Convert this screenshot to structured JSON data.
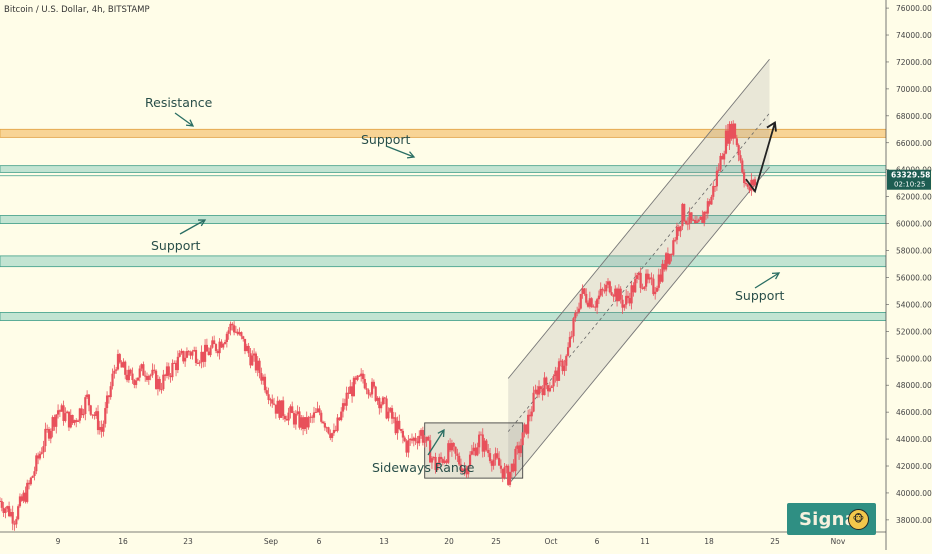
{
  "title": "Bitcoin / U.S. Dollar, 4h, BITSTAMP",
  "price_badge": {
    "price": "63329.58",
    "timer": "02:10:25"
  },
  "watermark": {
    "text": "Signal",
    "icon": "monkey-face-icon"
  },
  "annotations": {
    "resistance": "Resistance",
    "support_1": "Support",
    "support_2": "Support",
    "support_3": "Support",
    "sideways": "Sideways Range"
  },
  "colors": {
    "background": "#fffde8",
    "candle_up": "#e8505b",
    "candle_down": "#e8505b",
    "resistance_zone": "#f6c57a",
    "support_zone": "#8fcfc0",
    "channel": "#c8c8c8",
    "badge": "#1d5d52"
  },
  "chart_data": {
    "type": "candlestick",
    "title": "Bitcoin / U.S. Dollar, 4h, BITSTAMP",
    "y_axis": {
      "ticks": [
        38000,
        40000,
        42000,
        44000,
        46000,
        48000,
        50000,
        52000,
        54000,
        56000,
        58000,
        60000,
        62000,
        64000,
        66000,
        68000,
        70000,
        72000,
        74000,
        76000
      ],
      "ylim": [
        37100,
        76600
      ],
      "position": "right"
    },
    "x_axis": {
      "ticks": [
        "9",
        "16",
        "23",
        "Sep",
        "6",
        "13",
        "20",
        "25",
        "Oct",
        "6",
        "11",
        "18",
        "25",
        "Nov"
      ]
    },
    "price_path": [
      [
        0,
        39400
      ],
      [
        4,
        38200
      ],
      [
        8,
        40500
      ],
      [
        12,
        43800
      ],
      [
        16,
        46200
      ],
      [
        20,
        45200
      ],
      [
        24,
        47000
      ],
      [
        28,
        44600
      ],
      [
        32,
        49800
      ],
      [
        36,
        48400
      ],
      [
        40,
        49200
      ],
      [
        44,
        48000
      ],
      [
        48,
        49500
      ],
      [
        52,
        50500
      ],
      [
        56,
        50200
      ],
      [
        60,
        51000
      ],
      [
        64,
        52500
      ],
      [
        68,
        50600
      ],
      [
        72,
        48800
      ],
      [
        76,
        46400
      ],
      [
        80,
        45800
      ],
      [
        84,
        45000
      ],
      [
        88,
        46000
      ],
      [
        92,
        44200
      ],
      [
        96,
        47500
      ],
      [
        100,
        48500
      ],
      [
        104,
        47200
      ],
      [
        108,
        45500
      ],
      [
        112,
        43500
      ],
      [
        116,
        44500
      ],
      [
        120,
        42000
      ],
      [
        124,
        43200
      ],
      [
        128,
        41800
      ],
      [
        132,
        44000
      ],
      [
        136,
        42500
      ],
      [
        140,
        41200
      ],
      [
        144,
        44000
      ],
      [
        148,
        47800
      ],
      [
        152,
        48200
      ],
      [
        156,
        50000
      ],
      [
        160,
        54800
      ],
      [
        164,
        54200
      ],
      [
        168,
        55500
      ],
      [
        172,
        54000
      ],
      [
        176,
        56000
      ],
      [
        180,
        55200
      ],
      [
        184,
        57500
      ],
      [
        188,
        60800
      ],
      [
        192,
        59500
      ],
      [
        196,
        62000
      ],
      [
        200,
        66400
      ],
      [
        202,
        67200
      ],
      [
        204,
        64800
      ],
      [
        206,
        62300
      ],
      [
        208,
        63300
      ]
    ],
    "zones": [
      {
        "name": "Resistance",
        "from": 66400,
        "to": 67000,
        "color": "#f6c57a"
      },
      {
        "name": "Support",
        "from": 63800,
        "to": 64300,
        "color": "#8fcfc0"
      },
      {
        "name": "Support",
        "from": 60000,
        "to": 60600,
        "color": "#8fcfc0"
      },
      {
        "name": "Support",
        "from": 56800,
        "to": 57600,
        "color": "#8fcfc0"
      },
      {
        "name": "Support",
        "from": 52800,
        "to": 53400,
        "color": "#8fcfc0"
      }
    ],
    "last_price": 63329.58
  }
}
